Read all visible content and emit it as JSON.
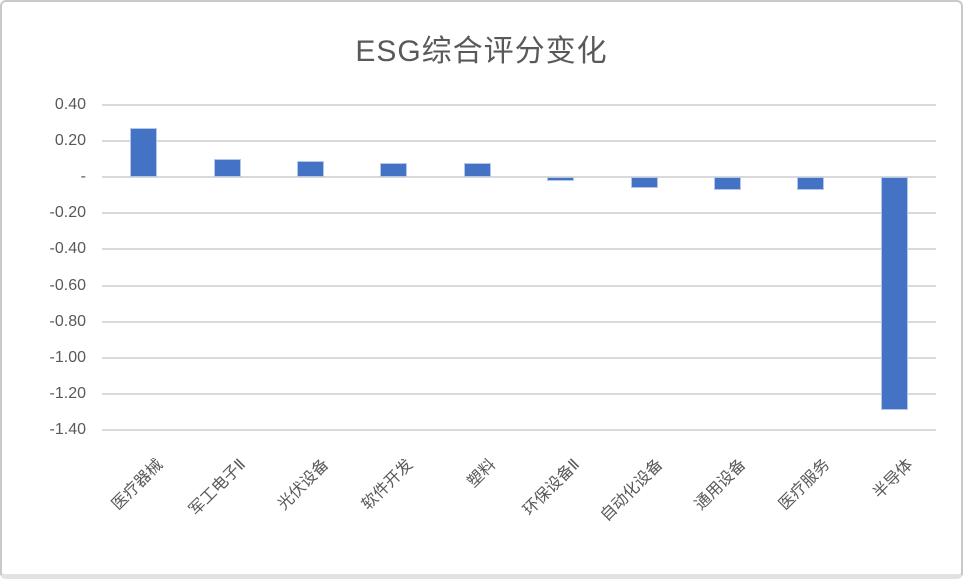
{
  "chart_data": {
    "type": "bar",
    "title": "ESG综合评分变化",
    "categories": [
      "医疗器械",
      "军工电子Ⅱ",
      "光伏设备",
      "软件开发",
      "塑料",
      "环保设备Ⅱ",
      "自动化设备",
      "通用设备",
      "医疗服务",
      "半导体"
    ],
    "values": [
      0.27,
      0.1,
      0.09,
      0.08,
      0.08,
      -0.02,
      -0.06,
      -0.07,
      -0.07,
      -1.29
    ],
    "xlabel": "",
    "ylabel": "",
    "ylim": [
      -1.4,
      0.4
    ],
    "y_tick_labels": [
      "0.40",
      "0.20",
      "-",
      "-0.20",
      "-0.40",
      "-0.60",
      "-0.80",
      "-1.00",
      "-1.20",
      "-1.40"
    ],
    "y_tick_values": [
      0.4,
      0.2,
      0.0,
      -0.2,
      -0.4,
      -0.6,
      -0.8,
      -1.0,
      -1.2,
      -1.4
    ],
    "grid": true,
    "legend_position": "none",
    "bar_color": "#4472C4",
    "bar_edge_color": "#B4C7E7",
    "gridline_color": "#D9D9D9",
    "text_color": "#595959",
    "background_color": "#FFFFFF",
    "frame_border_color": "#C9C9C9"
  }
}
